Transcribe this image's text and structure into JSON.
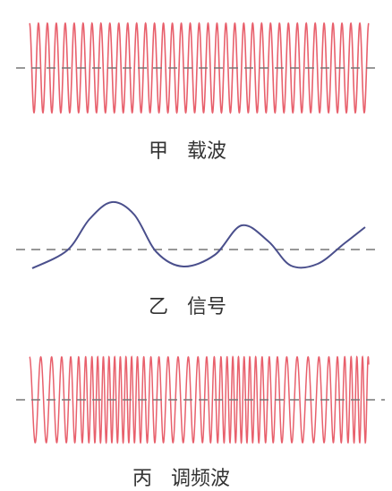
{
  "panels": [
    {
      "key": "carrier",
      "label_prefix": "甲",
      "label": "载波",
      "wave_kind": "carrier"
    },
    {
      "key": "signal",
      "label_prefix": "乙",
      "label": "信号",
      "wave_kind": "signal"
    },
    {
      "key": "fm",
      "label_prefix": "丙",
      "label": "调频波",
      "wave_kind": "frequency-modulated"
    }
  ],
  "colors": {
    "carrier": "#e8606c",
    "signal": "#4a4f8c",
    "axis": "#777777",
    "text": "#333333"
  }
}
